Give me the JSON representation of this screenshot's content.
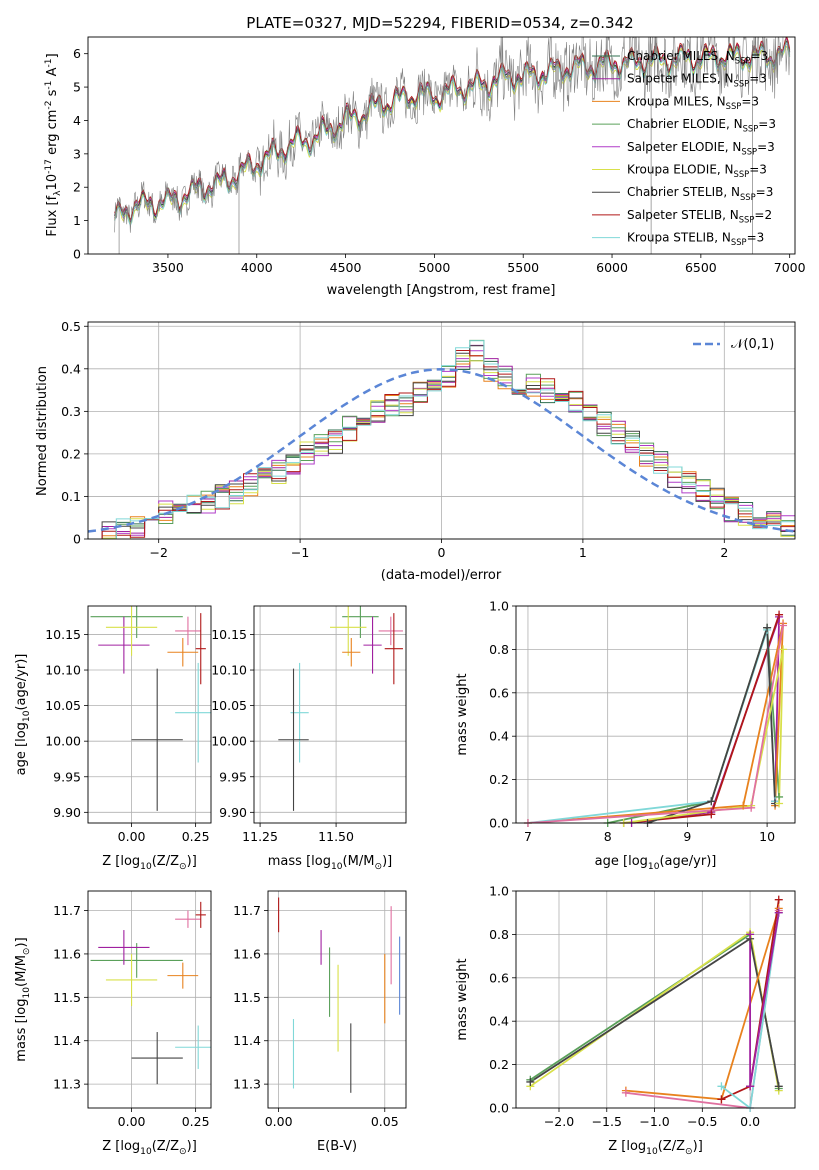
{
  "figure_title": "PLATE=0327, MJD=52294, FIBERID=0534, z=0.342",
  "series_colors": [
    {
      "name": "Chabrier MILES, N$_{SSP}$=3",
      "color": "#2f6f4f"
    },
    {
      "name": "Salpeter MILES, N$_{SSP}$=3",
      "color": "#a020a0"
    },
    {
      "name": "Kroupa MILES, N$_{SSP}$=3",
      "color": "#e8821e"
    },
    {
      "name": "Chabrier ELODIE, N$_{SSP}$=3",
      "color": "#5aa05a"
    },
    {
      "name": "Salpeter ELODIE, N$_{SSP}$=3",
      "color": "#b03cc8"
    },
    {
      "name": "Kroupa ELODIE, N$_{SSP}$=3",
      "color": "#d8e04a"
    },
    {
      "name": "Chabrier STELIB, N$_{SSP}$=3",
      "color": "#444444"
    },
    {
      "name": "Salpeter STELIB, N$_{SSP}$=2",
      "color": "#b01818"
    },
    {
      "name": "Kroupa STELIB, N$_{SSP}$=3",
      "color": "#80d8d8"
    }
  ],
  "chart_data": [
    {
      "id": "spectrum",
      "type": "line",
      "title": "PLATE=0327, MJD=52294, FIBERID=0534, z=0.342",
      "xlabel": "wavelength [Angstrom, rest frame]",
      "ylabel": "Flux [f$_\\lambda$10$^{-17}$ erg cm$^{-2}$ s$^{-1}$ A$^{-1}$]",
      "xlim": [
        3050,
        7030
      ],
      "ylim": [
        0,
        6.5
      ],
      "xticks": [
        3500,
        4000,
        4500,
        5000,
        5500,
        6000,
        6500,
        7000
      ],
      "yticks": [
        0,
        1,
        2,
        3,
        4,
        5,
        6
      ],
      "grid": false,
      "legend_position": "top-right",
      "legend": [
        "Chabrier MILES, N$_{SSP}$=3",
        "Salpeter MILES, N$_{SSP}$=3",
        "Kroupa MILES, N$_{SSP}$=3",
        "Chabrier ELODIE, N$_{SSP}$=3",
        "Salpeter ELODIE, N$_{SSP}$=3",
        "Kroupa ELODIE, N$_{SSP}$=3",
        "Chabrier STELIB, N$_{SSP}$=3",
        "Salpeter STELIB, N$_{SSP}$=2",
        "Kroupa STELIB, N$_{SSP}$=3"
      ],
      "data_series": {
        "name": "data",
        "color": "#808080",
        "x": [
          3200,
          3250,
          3300,
          3400,
          3500,
          3600,
          3700,
          3800,
          3900,
          4000,
          4100,
          4200,
          4300,
          4400,
          4500,
          4600,
          4700,
          4800,
          4900,
          5000,
          5100,
          5200,
          5300,
          5400,
          5500,
          5600,
          5700,
          5800,
          5900,
          6000,
          6100,
          6200,
          6300,
          6400,
          6500,
          6600,
          6700,
          6800,
          6900,
          7000
        ],
        "y": [
          1.05,
          1.25,
          1.4,
          1.5,
          1.55,
          1.75,
          2.0,
          2.1,
          2.4,
          2.7,
          3.0,
          3.3,
          3.4,
          3.7,
          4.0,
          4.2,
          4.5,
          4.6,
          4.8,
          4.7,
          4.9,
          5.0,
          5.1,
          5.3,
          5.3,
          5.4,
          5.5,
          5.6,
          5.6,
          5.7,
          5.7,
          5.8,
          5.8,
          5.85,
          5.85,
          5.9,
          5.9,
          5.9,
          5.95,
          6.0
        ]
      },
      "model_y_offsets": [
        0.0,
        0.05,
        -0.05,
        0.03,
        -0.02,
        -0.1,
        0.0,
        0.1,
        -0.08
      ]
    },
    {
      "id": "residuals",
      "type": "histogram",
      "xlabel": "(data-model)/error",
      "ylabel": "Normed distribution",
      "xlim": [
        -2.5,
        2.5
      ],
      "ylim": [
        0,
        0.51
      ],
      "xticks": [
        -2,
        -1,
        0,
        1,
        2
      ],
      "yticks": [
        0.0,
        0.1,
        0.2,
        0.3,
        0.4,
        0.5
      ],
      "grid": true,
      "legend_position": "top-right",
      "legend": [
        "$\\mathcal{N}(0,1)$"
      ],
      "reference_curve": {
        "name": "$\\mathcal{N}(0,1)$",
        "mean": 0,
        "sigma": 1,
        "color": "#5b86d6",
        "style": "dashed"
      },
      "bin_edges_start": -2.5,
      "bin_width": 0.1,
      "base_heights": [
        0.01,
        0.015,
        0.02,
        0.03,
        0.04,
        0.06,
        0.07,
        0.08,
        0.09,
        0.1,
        0.11,
        0.13,
        0.14,
        0.16,
        0.18,
        0.2,
        0.22,
        0.23,
        0.26,
        0.28,
        0.3,
        0.31,
        0.32,
        0.34,
        0.36,
        0.38,
        0.42,
        0.44,
        0.4,
        0.38,
        0.36,
        0.36,
        0.35,
        0.33,
        0.32,
        0.3,
        0.27,
        0.25,
        0.23,
        0.2,
        0.18,
        0.15,
        0.13,
        0.11,
        0.09,
        0.07,
        0.06,
        0.05,
        0.04,
        0.03
      ]
    },
    {
      "id": "age_vs_Z",
      "type": "scatter",
      "xlabel": "Z [log$_{10}$(Z/Z$_\\odot$)]",
      "ylabel": "age  [log$_{10}$(age/yr)]",
      "xlim": [
        -0.17,
        0.31
      ],
      "ylim": [
        9.885,
        10.19
      ],
      "xticks": [
        0.0,
        0.25
      ],
      "xticklabels": [
        "0.00",
        "0.25"
      ],
      "yticks": [
        9.9,
        9.95,
        10.0,
        10.05,
        10.1,
        10.15
      ],
      "yticklabels": [
        "9.90",
        "9.95",
        "10.00",
        "10.05",
        "10.10",
        "10.15"
      ],
      "grid": true,
      "points": [
        {
          "x": 0.02,
          "y": 10.175,
          "xerr": 0.18,
          "yerr": 0.03,
          "color": "#5aa05a"
        },
        {
          "x": -0.03,
          "y": 10.135,
          "xerr": 0.1,
          "yerr": 0.04,
          "color": "#a020a0"
        },
        {
          "x": 0.0,
          "y": 10.16,
          "xerr": 0.1,
          "yerr": 0.04,
          "color": "#d8e04a"
        },
        {
          "x": 0.22,
          "y": 10.155,
          "xerr": 0.05,
          "yerr": 0.02,
          "color": "#e070a0"
        },
        {
          "x": 0.2,
          "y": 10.125,
          "xerr": 0.06,
          "yerr": 0.02,
          "color": "#e8821e"
        },
        {
          "x": 0.27,
          "y": 10.13,
          "xerr": 0.02,
          "yerr": 0.05,
          "color": "#b01818"
        },
        {
          "x": 0.26,
          "y": 10.04,
          "xerr": 0.09,
          "yerr": 0.07,
          "color": "#80d8d8"
        },
        {
          "x": 0.1,
          "y": 10.002,
          "xerr": 0.1,
          "yerr": 0.1,
          "color": "#444444"
        }
      ]
    },
    {
      "id": "age_vs_mass",
      "type": "scatter",
      "xlabel": "mass [log$_{10}$(M/M$_\\odot$)]",
      "xlim": [
        11.23,
        11.73
      ],
      "ylim": [
        9.885,
        10.19
      ],
      "xticks": [
        11.25,
        11.5
      ],
      "xticklabels": [
        "11.25",
        "11.50"
      ],
      "yticks": [
        9.9,
        9.95,
        10.0,
        10.05,
        10.1,
        10.15
      ],
      "yticklabels": [
        "9.90",
        "9.95",
        "10.00",
        "10.05",
        "10.10",
        "10.15"
      ],
      "grid": true,
      "points": [
        {
          "x": 11.58,
          "y": 10.175,
          "xerr": 0.06,
          "yerr": 0.03,
          "color": "#5aa05a"
        },
        {
          "x": 11.62,
          "y": 10.135,
          "xerr": 0.03,
          "yerr": 0.04,
          "color": "#a020a0"
        },
        {
          "x": 11.54,
          "y": 10.16,
          "xerr": 0.06,
          "yerr": 0.04,
          "color": "#d8e04a"
        },
        {
          "x": 11.68,
          "y": 10.155,
          "xerr": 0.04,
          "yerr": 0.02,
          "color": "#e070a0"
        },
        {
          "x": 11.55,
          "y": 10.125,
          "xerr": 0.03,
          "yerr": 0.02,
          "color": "#e8821e"
        },
        {
          "x": 11.69,
          "y": 10.13,
          "xerr": 0.03,
          "yerr": 0.05,
          "color": "#b01818"
        },
        {
          "x": 11.38,
          "y": 10.04,
          "xerr": 0.03,
          "yerr": 0.07,
          "color": "#80d8d8"
        },
        {
          "x": 11.36,
          "y": 10.002,
          "xerr": 0.05,
          "yerr": 0.1,
          "color": "#444444"
        }
      ]
    },
    {
      "id": "massweight_vs_age",
      "type": "line",
      "xlabel": "age  [log$_{10}$(age/yr)]",
      "ylabel": "mass weight",
      "xlim": [
        6.85,
        10.35
      ],
      "ylim": [
        0,
        1.0
      ],
      "xticks": [
        7,
        8,
        9,
        10
      ],
      "yticks": [
        0.0,
        0.2,
        0.4,
        0.6,
        0.8,
        1.0
      ],
      "yticklabels": [
        "0.0",
        "0.2",
        "0.4",
        "0.6",
        "0.8",
        "1.0"
      ],
      "grid": true,
      "series": [
        {
          "x": [
            8.0,
            9.3,
            10.0,
            10.15
          ],
          "y": [
            0.0,
            0.1,
            0.9,
            0.12
          ],
          "color": "#5aa05a"
        },
        {
          "x": [
            8.3,
            9.3,
            10.15,
            10.1
          ],
          "y": [
            0.0,
            0.05,
            0.95,
            0.1
          ],
          "color": "#a020a0"
        },
        {
          "x": [
            7.0,
            9.7,
            10.2,
            10.1
          ],
          "y": [
            0.0,
            0.08,
            0.92,
            0.08
          ],
          "color": "#e8821e"
        },
        {
          "x": [
            8.2,
            9.3,
            10.15
          ],
          "y": [
            0.0,
            0.04,
            0.96
          ],
          "color": "#b01818"
        },
        {
          "x": [
            7.0,
            9.3,
            10.0,
            10.1
          ],
          "y": [
            0.0,
            0.1,
            0.89,
            0.1
          ],
          "color": "#80d8d8"
        },
        {
          "x": [
            8.5,
            9.3,
            10.0,
            10.1
          ],
          "y": [
            0.0,
            0.1,
            0.9,
            0.09
          ],
          "color": "#444444"
        },
        {
          "x": [
            8.2,
            9.8,
            10.2,
            10.15
          ],
          "y": [
            0.0,
            0.08,
            0.8,
            0.09
          ],
          "color": "#d8e04a"
        },
        {
          "x": [
            7.0,
            9.8,
            10.2
          ],
          "y": [
            0.0,
            0.07,
            0.91
          ],
          "color": "#e070a0"
        }
      ]
    },
    {
      "id": "mass_vs_Z",
      "type": "scatter",
      "xlabel": "Z [log$_{10}$(Z/Z$_\\odot$)]",
      "ylabel": "mass [log$_{10}$(M/M$_\\odot$)]",
      "xlim": [
        -0.17,
        0.31
      ],
      "ylim": [
        11.245,
        11.745
      ],
      "xticks": [
        0.0,
        0.25
      ],
      "xticklabels": [
        "0.00",
        "0.25"
      ],
      "yticks": [
        11.3,
        11.4,
        11.5,
        11.6,
        11.7
      ],
      "yticklabels": [
        "11.3",
        "11.4",
        "11.5",
        "11.6",
        "11.7"
      ],
      "grid": true,
      "points": [
        {
          "x": 0.02,
          "y": 11.585,
          "xerr": 0.18,
          "yerr": 0.04,
          "color": "#5aa05a"
        },
        {
          "x": -0.03,
          "y": 11.615,
          "xerr": 0.1,
          "yerr": 0.04,
          "color": "#a020a0"
        },
        {
          "x": 0.0,
          "y": 11.54,
          "xerr": 0.1,
          "yerr": 0.06,
          "color": "#d8e04a"
        },
        {
          "x": 0.22,
          "y": 11.68,
          "xerr": 0.05,
          "yerr": 0.02,
          "color": "#e070a0"
        },
        {
          "x": 0.2,
          "y": 11.55,
          "xerr": 0.06,
          "yerr": 0.03,
          "color": "#e8821e"
        },
        {
          "x": 0.27,
          "y": 11.69,
          "xerr": 0.02,
          "yerr": 0.03,
          "color": "#b01818"
        },
        {
          "x": 0.26,
          "y": 11.385,
          "xerr": 0.09,
          "yerr": 0.05,
          "color": "#80d8d8"
        },
        {
          "x": 0.1,
          "y": 11.36,
          "xerr": 0.1,
          "yerr": 0.06,
          "color": "#444444"
        }
      ]
    },
    {
      "id": "mass_vs_ebv",
      "type": "scatter",
      "xlabel": "E(B-V)",
      "xlim": [
        -0.005,
        0.06
      ],
      "ylim": [
        11.245,
        11.745
      ],
      "xticks": [
        0.0,
        0.05
      ],
      "xticklabels": [
        "0.00",
        "0.05"
      ],
      "yticks": [
        11.3,
        11.4,
        11.5,
        11.6,
        11.7
      ],
      "yticklabels": [
        "11.3",
        "11.4",
        "11.5",
        "11.6",
        "11.7"
      ],
      "grid": true,
      "points": [
        {
          "x": 0.0,
          "y": 11.69,
          "yerr": 0.04,
          "color": "#b01818"
        },
        {
          "x": 0.007,
          "y": 11.37,
          "yerr": 0.08,
          "color": "#80d8d8"
        },
        {
          "x": 0.02,
          "y": 11.615,
          "yerr": 0.04,
          "color": "#a020a0"
        },
        {
          "x": 0.024,
          "y": 11.535,
          "yerr": 0.08,
          "color": "#5aa05a"
        },
        {
          "x": 0.028,
          "y": 11.475,
          "yerr": 0.1,
          "color": "#d8e04a"
        },
        {
          "x": 0.034,
          "y": 11.36,
          "yerr": 0.08,
          "color": "#444444"
        },
        {
          "x": 0.05,
          "y": 11.52,
          "yerr": 0.08,
          "color": "#e8821e"
        },
        {
          "x": 0.053,
          "y": 11.62,
          "yerr": 0.09,
          "color": "#e070a0"
        },
        {
          "x": 0.057,
          "y": 11.55,
          "yerr": 0.09,
          "color": "#5b86d6"
        }
      ]
    },
    {
      "id": "massweight_vs_Z",
      "type": "line",
      "xlabel": "Z [log$_{10}$(Z/Z$_\\odot$)]",
      "ylabel": "mass weight",
      "xlim": [
        -2.45,
        0.47
      ],
      "ylim": [
        0,
        1.0
      ],
      "xticks": [
        -2.0,
        -1.5,
        -1.0,
        -0.5,
        0.0
      ],
      "xticklabels": [
        "−2.0",
        "−1.5",
        "−1.0",
        "−0.5",
        "0.0"
      ],
      "yticks": [
        0.0,
        0.2,
        0.4,
        0.6,
        0.8,
        1.0
      ],
      "yticklabels": [
        "0.0",
        "0.2",
        "0.4",
        "0.6",
        "0.8",
        "1.0"
      ],
      "grid": true,
      "series": [
        {
          "x": [
            -2.3,
            0.0,
            0.3
          ],
          "y": [
            0.13,
            0.8,
            0.09
          ],
          "color": "#5aa05a"
        },
        {
          "x": [
            -2.3,
            0.0,
            0.3
          ],
          "y": [
            0.1,
            0.81,
            0.08
          ],
          "color": "#d8e04a"
        },
        {
          "x": [
            -2.3,
            0.0,
            0.3
          ],
          "y": [
            0.12,
            0.78,
            0.1
          ],
          "color": "#444444"
        },
        {
          "x": [
            -1.3,
            -0.3,
            0.3
          ],
          "y": [
            0.08,
            0.04,
            0.92
          ],
          "color": "#e8821e"
        },
        {
          "x": [
            -1.3,
            0.0,
            0.3
          ],
          "y": [
            0.07,
            0.0,
            0.91
          ],
          "color": "#e070a0"
        },
        {
          "x": [
            -0.3,
            0.0,
            0.3
          ],
          "y": [
            0.04,
            0.1,
            0.96
          ],
          "color": "#b01818"
        },
        {
          "x": [
            -0.3,
            0.0,
            0.3
          ],
          "y": [
            0.1,
            0.0,
            0.9
          ],
          "color": "#80d8d8"
        },
        {
          "x": [
            0.0,
            0.0,
            0.3
          ],
          "y": [
            0.8,
            0.1,
            0.9
          ],
          "color": "#a020a0"
        }
      ]
    }
  ]
}
